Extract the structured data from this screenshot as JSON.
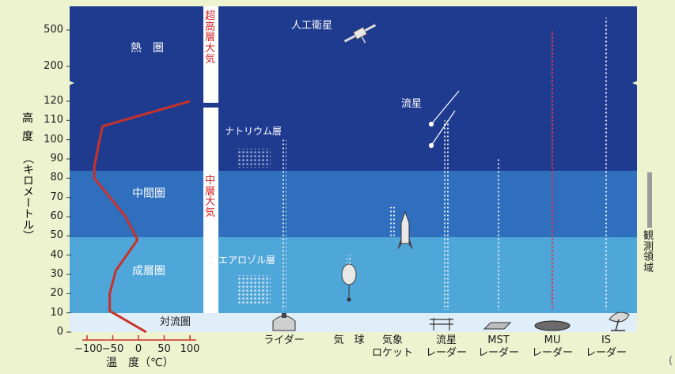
{
  "colors": {
    "thermosphere": "#1f3b8f",
    "mesosphere": "#2f6fbd",
    "stratosphere": "#4fa6d9",
    "troposphere": "#dfeef8",
    "temperature_curve": "#c8322a",
    "background": "#eef3cf"
  },
  "axis": {
    "y_title": [
      "高",
      "度",
      "（キロメートル）"
    ],
    "y_ticks_lower": [
      "0",
      "10",
      "20",
      "30",
      "40",
      "50",
      "60",
      "70",
      "80",
      "90",
      "100",
      "110",
      "120"
    ],
    "y_ticks_upper": [
      "200",
      "500"
    ],
    "x_ticks": [
      "−100",
      "−50",
      "0",
      "50",
      "100"
    ],
    "x_title": "温　度（℃）"
  },
  "layers": {
    "thermosphere": "熱　圏",
    "mesosphere": "中間圏",
    "stratosphere": "成層圏",
    "troposphere": "対流圏"
  },
  "vertical_labels": {
    "upper_atmosphere": "超高層大気",
    "middle_atmosphere": "中層大気",
    "observation_range": "観測領域"
  },
  "annotations": {
    "satellite": "人工衛星",
    "meteor": "流星",
    "sodium_layer": "ナトリウム層",
    "aerosol_layer": "エアロゾル層"
  },
  "instruments": [
    {
      "line1": "ライダー",
      "line2": "",
      "top_km": 100
    },
    {
      "line1": "気　球",
      "line2": "",
      "top_km": 40
    },
    {
      "line1": "気象",
      "line2": "ロケット",
      "top_km": 65
    },
    {
      "line1": "流星",
      "line2": "レーダー",
      "top_km": 110
    },
    {
      "line1": "MST",
      "line2": "レーダー",
      "top_km": 90
    },
    {
      "line1": "MU",
      "line2": "レーダー",
      "top_km": 500
    },
    {
      "line1": "IS",
      "line2": "レーダー",
      "top_km": 600
    }
  ],
  "temperature_profile": [
    {
      "km": 0,
      "c": 15
    },
    {
      "km": 11,
      "c": -56
    },
    {
      "km": 20,
      "c": -56
    },
    {
      "km": 32,
      "c": -44
    },
    {
      "km": 48,
      "c": -2
    },
    {
      "km": 60,
      "c": -25
    },
    {
      "km": 80,
      "c": -86
    },
    {
      "km": 86,
      "c": -86
    },
    {
      "km": 107,
      "c": -70
    },
    {
      "km": 120,
      "c": 100
    }
  ],
  "page_marker": "("
}
